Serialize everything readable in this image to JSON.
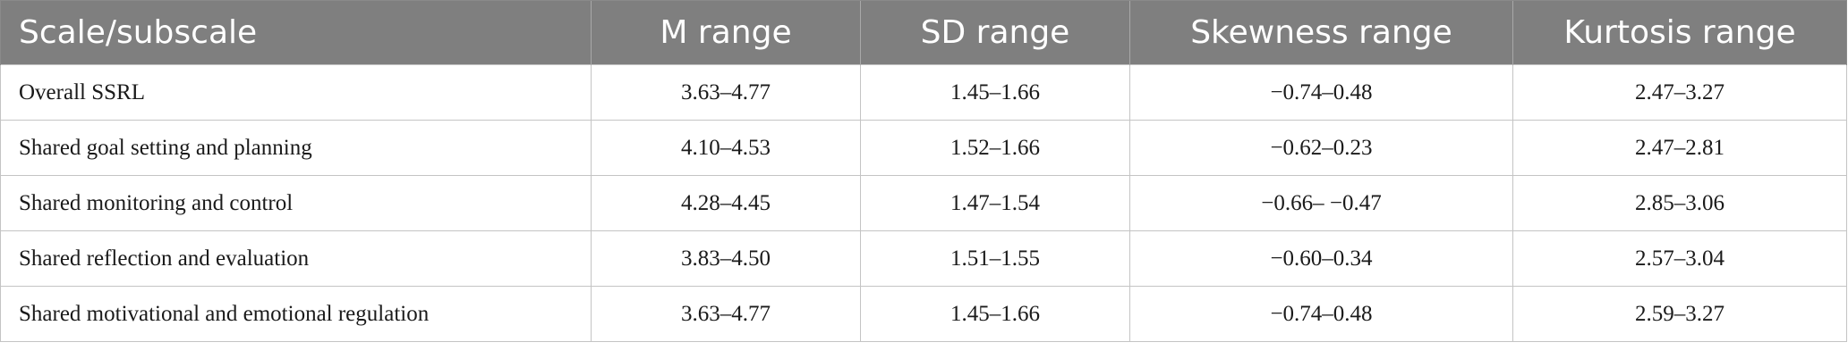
{
  "table": {
    "headers": [
      "Scale/subscale",
      "M range",
      "SD range",
      "Skewness range",
      "Kurtosis range"
    ],
    "rows": [
      [
        "Overall SSRL",
        "3.63–4.77",
        "1.45–1.66",
        "−0.74–0.48",
        "2.47–3.27"
      ],
      [
        "Shared goal setting and planning",
        "4.10–4.53",
        "1.52–1.66",
        "−0.62–0.23",
        "2.47–2.81"
      ],
      [
        "Shared monitoring and control",
        "4.28–4.45",
        "1.47–1.54",
        "−0.66– −0.47",
        "2.85–3.06"
      ],
      [
        "Shared reflection and evaluation",
        "3.83–4.50",
        "1.51–1.55",
        "−0.60–0.34",
        "2.57–3.04"
      ],
      [
        "Shared motivational and emotional regulation",
        "3.63–4.77",
        "1.45–1.66",
        "−0.74–0.48",
        "2.59–3.27"
      ]
    ]
  },
  "colors": {
    "header_background": "#7f7f7f",
    "header_text": "#ffffff",
    "grid": "#c4c4c4",
    "body_text": "#1a1a1a"
  }
}
